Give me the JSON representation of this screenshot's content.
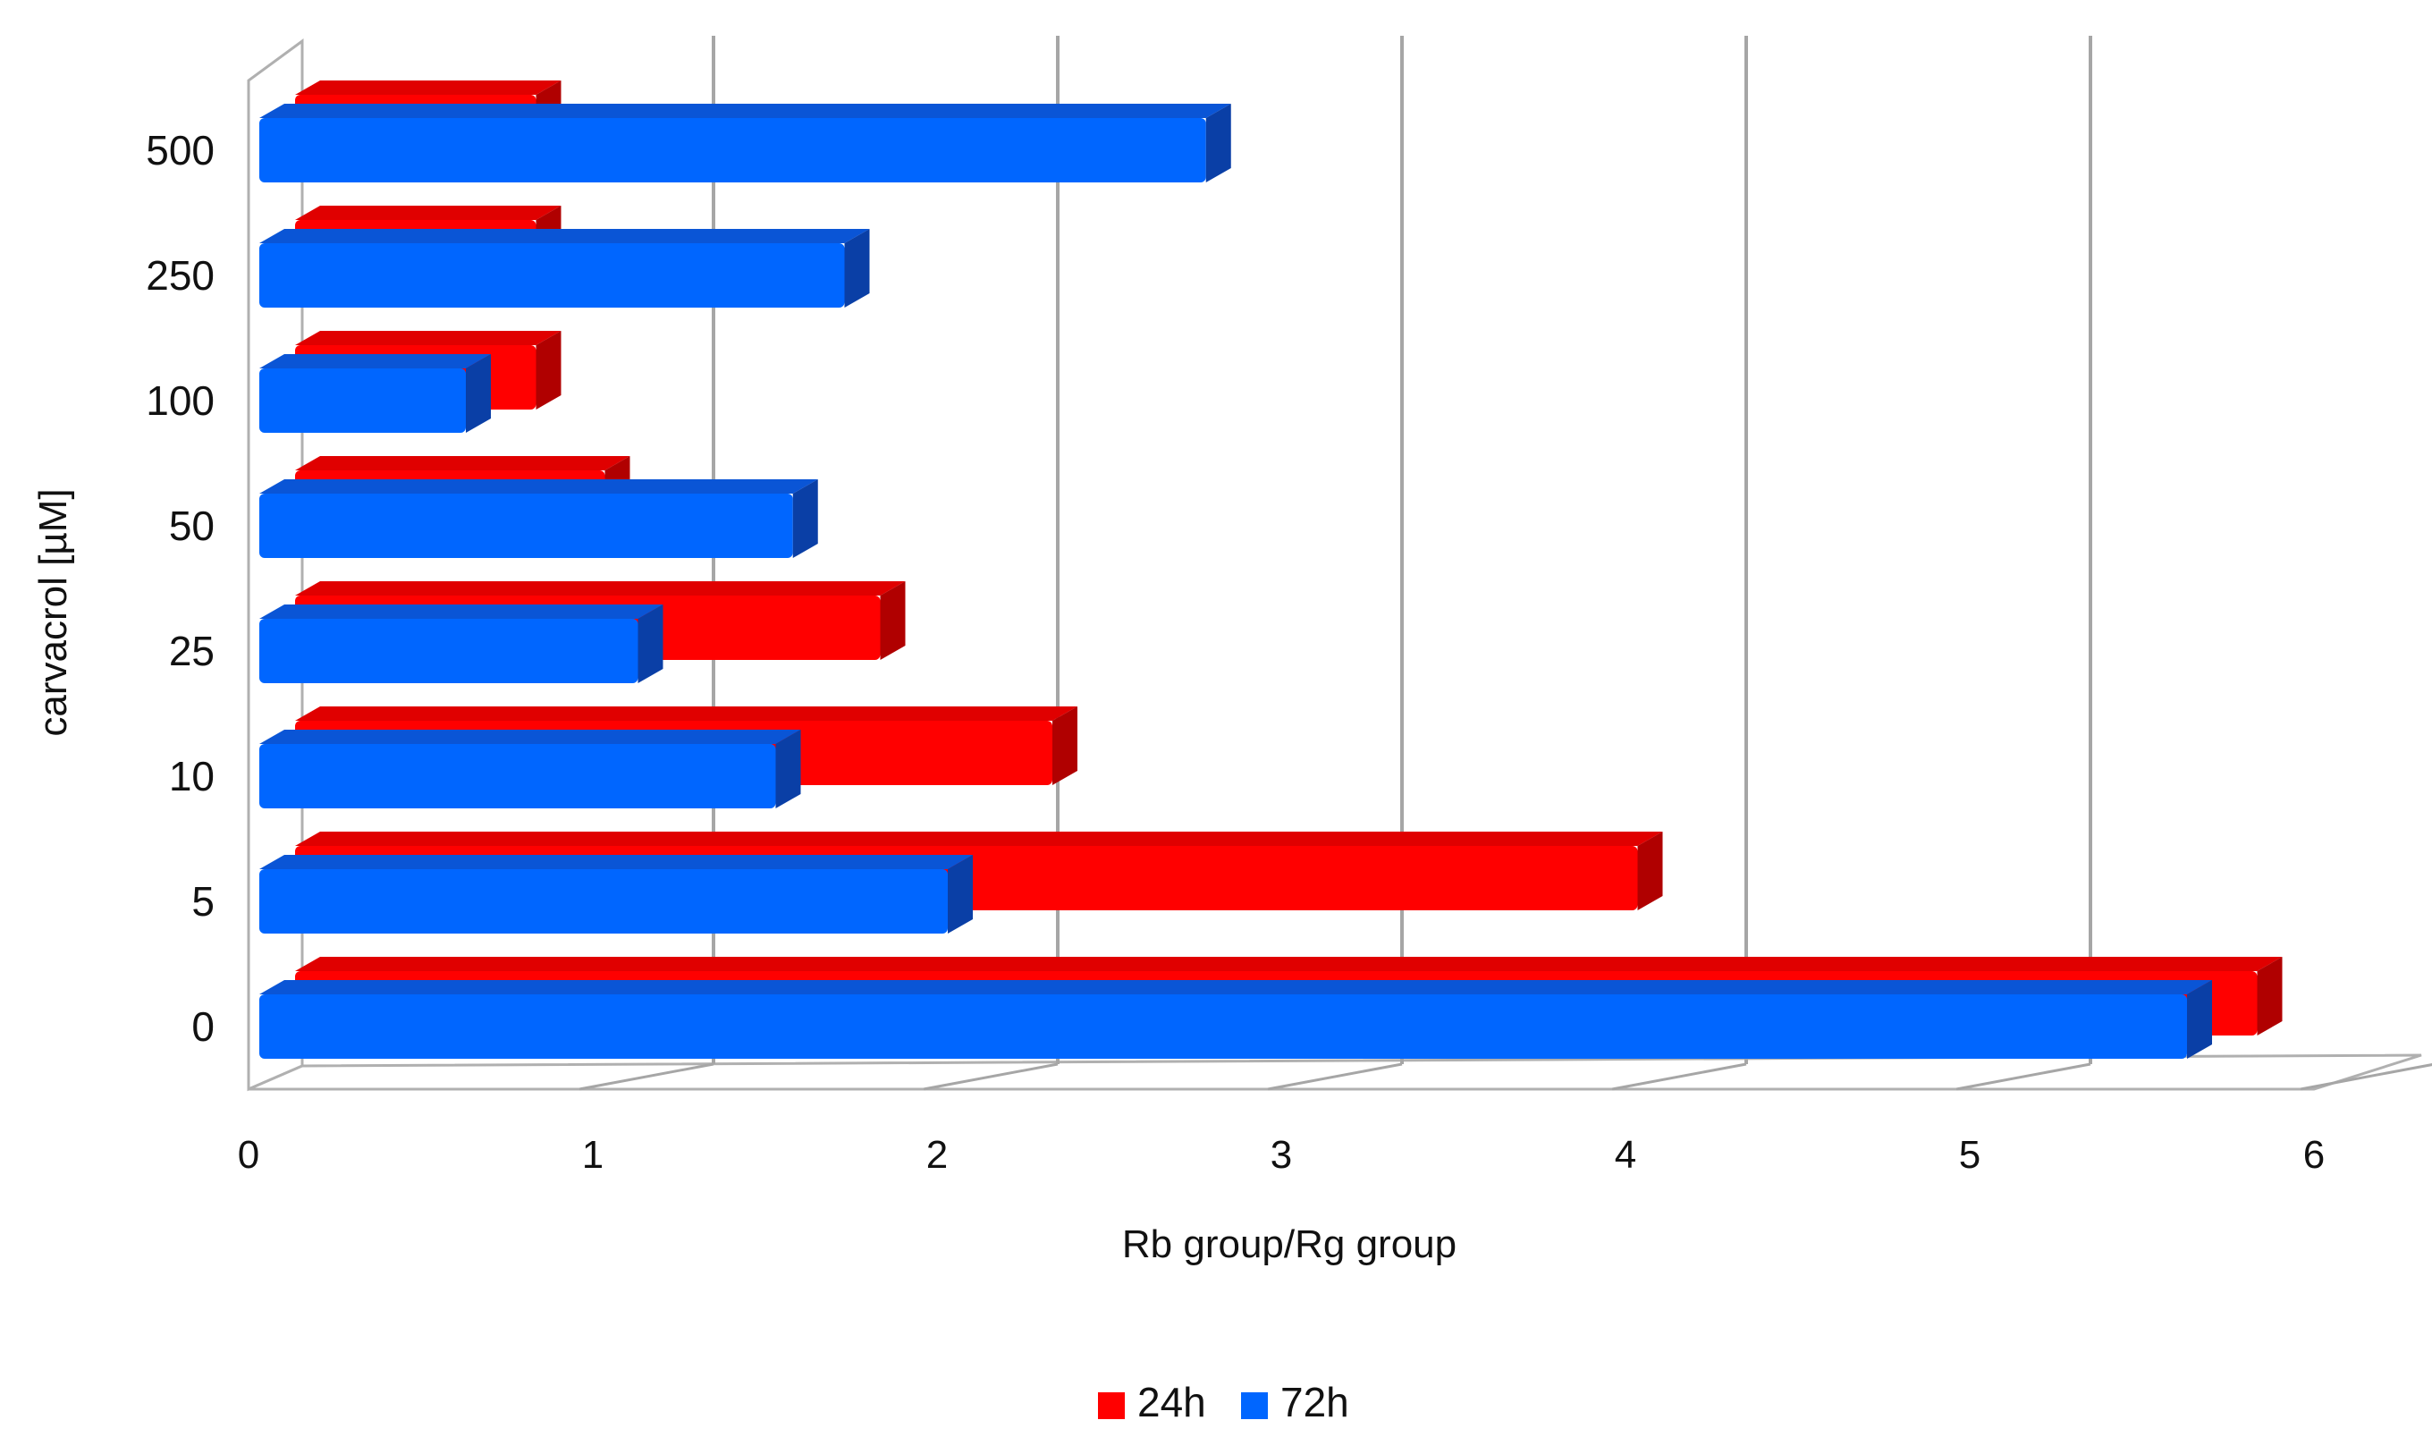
{
  "chart_data": {
    "type": "bar",
    "orientation": "horizontal",
    "style": "3d",
    "xlabel": "Rb group/Rg group",
    "ylabel": "carvacrol [µM]",
    "xlim": [
      0,
      6
    ],
    "xticks": [
      "0",
      "1",
      "2",
      "3",
      "4",
      "5",
      "6"
    ],
    "grid": "vertical major gridlines",
    "legend_position": "bottom",
    "categories": [
      "0",
      "5",
      "10",
      "25",
      "50",
      "100",
      "250",
      "500"
    ],
    "series": [
      {
        "name": "24h",
        "color": "#ff0000",
        "values": [
          5.7,
          3.9,
          2.2,
          1.7,
          0.9,
          0.7,
          0.7,
          0.7
        ]
      },
      {
        "name": "72h",
        "color": "#0066ff",
        "values": [
          5.6,
          2.0,
          1.5,
          1.1,
          1.55,
          0.6,
          1.7,
          2.75
        ]
      }
    ]
  }
}
